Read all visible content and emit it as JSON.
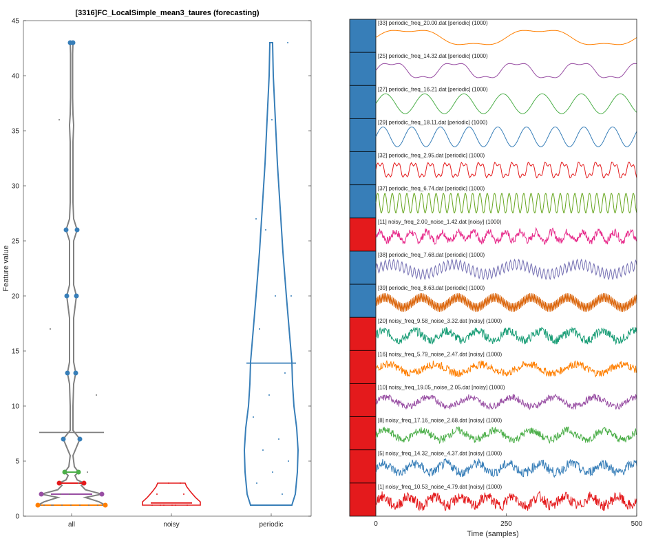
{
  "chart_data": [
    {
      "type": "violin",
      "title": "[3316]FC_LocalSimple_mean3_taures (forecasting)",
      "ylabel": "Feature value",
      "ylim": [
        0,
        45
      ],
      "yticks": [
        0,
        5,
        10,
        15,
        20,
        25,
        30,
        35,
        40,
        45
      ],
      "categories": [
        "all",
        "noisy",
        "periodic"
      ],
      "colors": [
        "#808080",
        "#e41a1c",
        "#377eb8"
      ],
      "means": [
        7.6,
        1.2,
        13.9
      ],
      "all_markers": [
        {
          "value": 1,
          "color": "#ff7f00"
        },
        {
          "value": 2,
          "color": "#984ea3"
        },
        {
          "value": 3,
          "color": "#e41a1c"
        },
        {
          "value": 4,
          "color": "#4daf4a"
        },
        {
          "value": 7,
          "color": "#377eb8"
        },
        {
          "value": 13,
          "color": "#377eb8"
        },
        {
          "value": 20,
          "color": "#377eb8"
        },
        {
          "value": 26,
          "color": "#377eb8"
        },
        {
          "value": 43,
          "color": "#377eb8"
        }
      ],
      "noisy_points": [
        1,
        1,
        1,
        1,
        1,
        1,
        2,
        2,
        3,
        3
      ],
      "periodic_points": [
        1,
        1,
        2,
        3,
        4,
        5,
        6,
        7,
        9,
        11,
        13,
        17,
        20,
        20,
        26,
        26,
        27,
        36,
        43
      ]
    },
    {
      "type": "line",
      "xlabel": "Time (samples)",
      "xlim": [
        0,
        500
      ],
      "xticks": [
        0,
        250,
        500
      ],
      "series": [
        {
          "name": "[33] periodic_freq_20.00.dat [periodic] (1000)",
          "class": "periodic",
          "color": "#ff7f00",
          "period": 250,
          "noise": 0,
          "fast": 0
        },
        {
          "name": "[25] periodic_freq_14.32.dat [periodic] (1000)",
          "class": "periodic",
          "color": "#984ea3",
          "period": 120,
          "noise": 0,
          "fast": 0
        },
        {
          "name": "[27] periodic_freq_16.21.dat [periodic] (1000)",
          "class": "periodic",
          "color": "#4daf4a",
          "period": 75,
          "noise": 0,
          "fast": 0
        },
        {
          "name": "[29] periodic_freq_18.11.dat [periodic] (1000)",
          "class": "periodic",
          "color": "#377eb8",
          "period": 55,
          "noise": 0,
          "fast": 0
        },
        {
          "name": "[32] periodic_freq_2.95.dat [periodic] (1000)",
          "class": "periodic",
          "color": "#e41a1c",
          "period": 32,
          "noise": 0,
          "fast": 0
        },
        {
          "name": "[37] periodic_freq_6.74.dat [periodic] (1000)",
          "class": "periodic",
          "color": "#66a61e",
          "period": 14,
          "noise": 0,
          "fast": 0
        },
        {
          "name": "[11] noisy_freq_2.00_noise_1.42.dat [noisy] (1000)",
          "class": "noisy",
          "color": "#e7298a",
          "period": 30,
          "noise": 0.7,
          "fast": 0
        },
        {
          "name": "[38] periodic_freq_7.68.dat [periodic] (1000)",
          "class": "periodic",
          "color": "#7570b3",
          "period": 120,
          "noise": 0,
          "fast": 8
        },
        {
          "name": "[39] periodic_freq_8.63.dat [periodic] (1000)",
          "class": "periodic",
          "color": "#d95f02",
          "period": 70,
          "noise": 0,
          "fast": 3
        },
        {
          "name": "[20] noisy_freq_9.58_noise_3.32.dat [noisy] (1000)",
          "class": "noisy",
          "color": "#1b9e77",
          "period": 60,
          "noise": 0.8,
          "fast": 0
        },
        {
          "name": "[16] noisy_freq_5.79_noise_2.47.dat [noisy] (1000)",
          "class": "noisy",
          "color": "#ff7f00",
          "period": 90,
          "noise": 0.7,
          "fast": 0
        },
        {
          "name": "[10] noisy_freq_19.05_noise_2.05.dat [noisy] (1000)",
          "class": "noisy",
          "color": "#984ea3",
          "period": 80,
          "noise": 0.6,
          "fast": 0
        },
        {
          "name": "[8] noisy_freq_17.16_noise_2.68.dat [noisy] (1000)",
          "class": "noisy",
          "color": "#4daf4a",
          "period": 70,
          "noise": 0.7,
          "fast": 0
        },
        {
          "name": "[5] noisy_freq_14.32_noise_4.37.dat [noisy] (1000)",
          "class": "noisy",
          "color": "#377eb8",
          "period": 60,
          "noise": 0.9,
          "fast": 0
        },
        {
          "name": "[1] noisy_freq_10.53_noise_4.79.dat [noisy] (1000)",
          "class": "noisy",
          "color": "#e41a1c",
          "period": 50,
          "noise": 1.0,
          "fast": 0
        }
      ],
      "class_colors": {
        "periodic": "#377eb8",
        "noisy": "#e41a1c"
      }
    }
  ]
}
